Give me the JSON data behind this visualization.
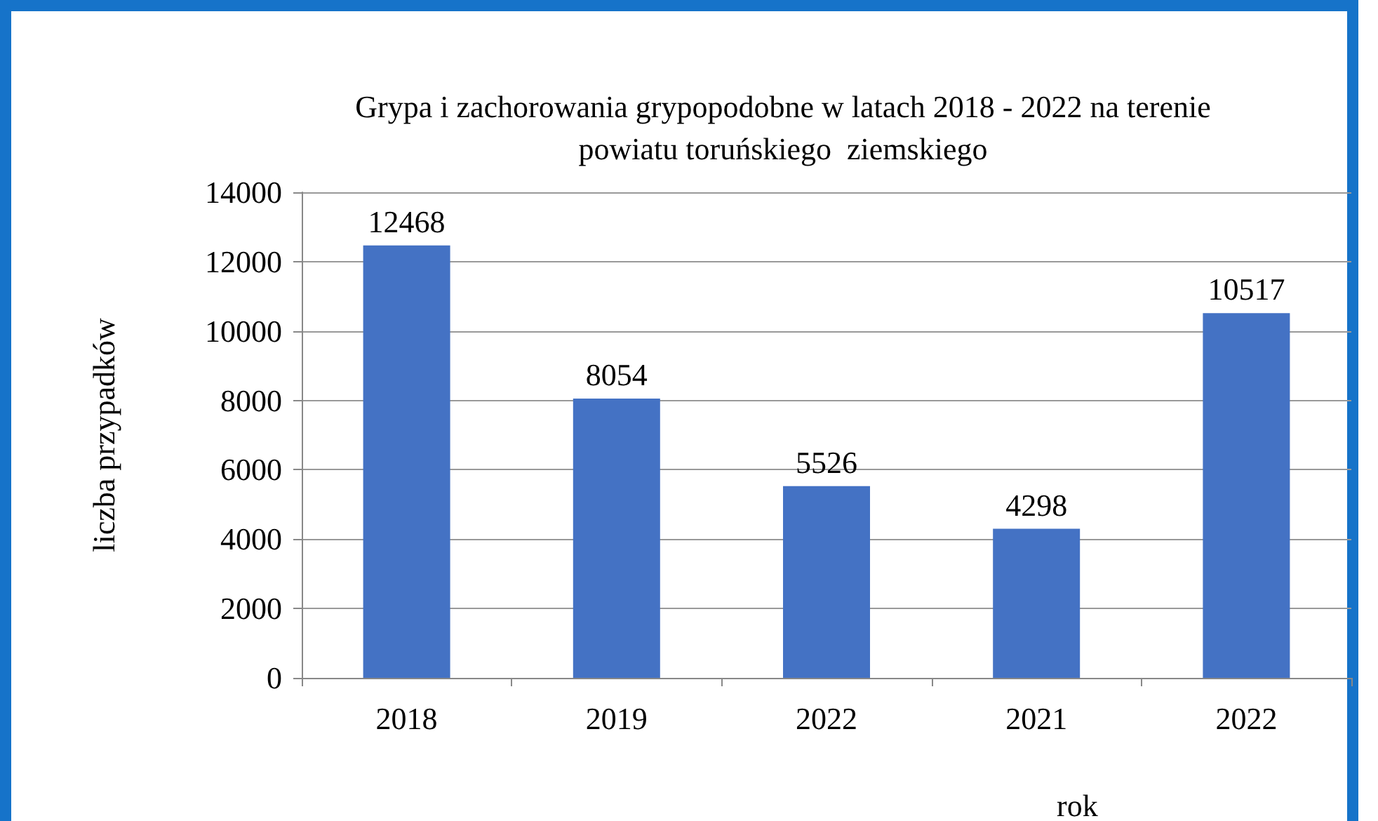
{
  "chart_data": {
    "type": "bar",
    "title": "Grypa i zachorowania grypopodobne w latach 2018 - 2022 na terenie\npowiatu toruńskiego  ziemskiego",
    "xlabel": "rok",
    "ylabel": "liczba przypadków",
    "categories": [
      "2018",
      "2019",
      "2022",
      "2021",
      "2022"
    ],
    "values": [
      12468,
      8054,
      5526,
      4298,
      10517
    ],
    "color": "#4472c4",
    "ylim": [
      0,
      14000
    ],
    "yticks": [
      0,
      2000,
      4000,
      6000,
      8000,
      10000,
      12000,
      14000
    ],
    "grid": "y",
    "data_labels": true
  }
}
